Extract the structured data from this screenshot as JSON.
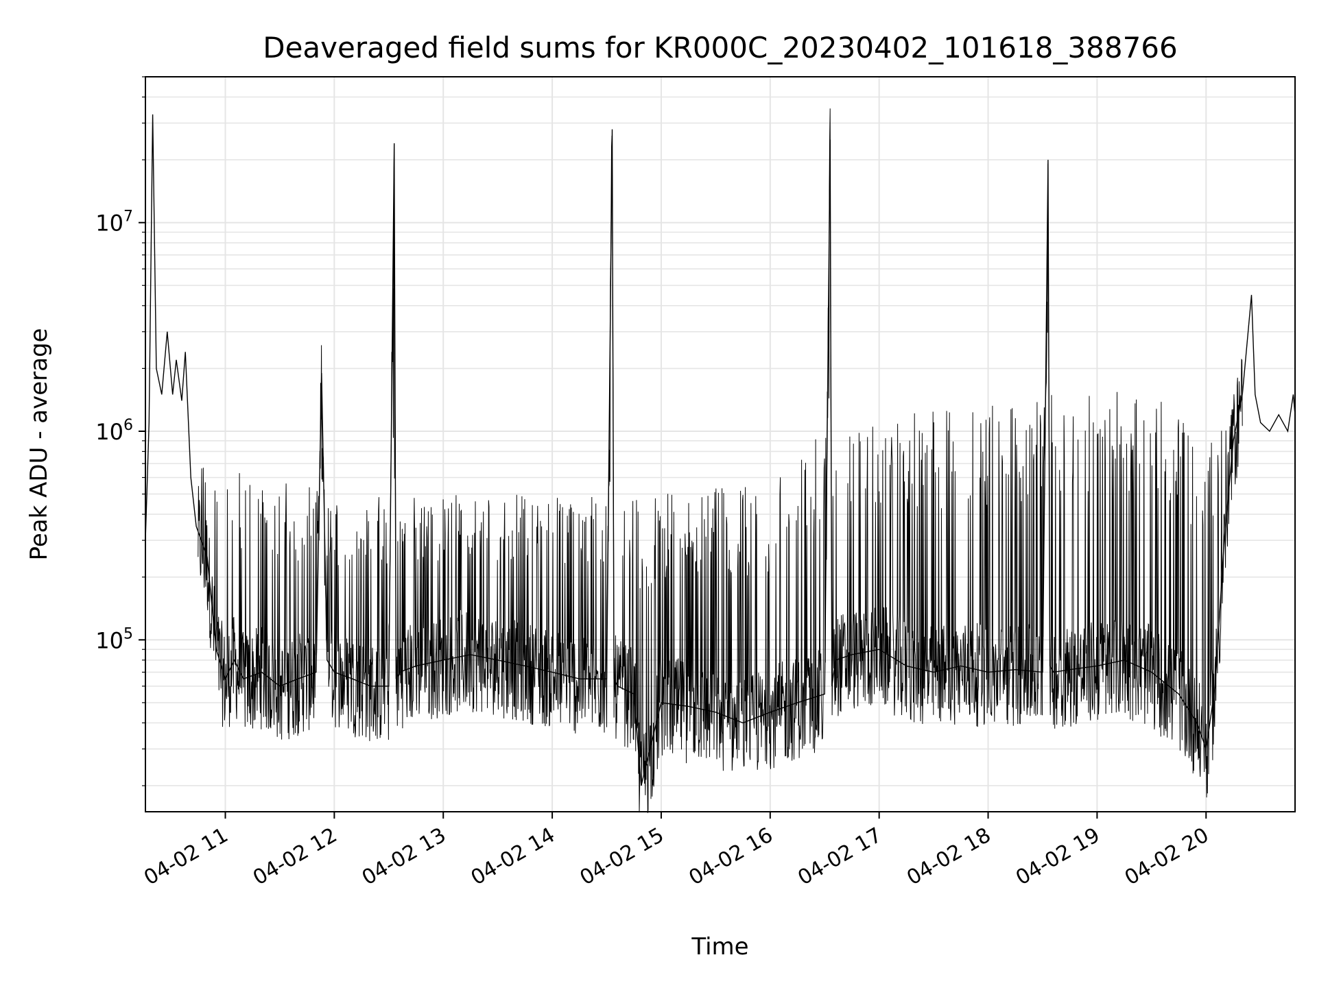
{
  "chart_data": {
    "type": "line",
    "title": "Deaveraged field sums for KR000C_20230402_101618_388766",
    "xlabel": "Time",
    "ylabel": "Peak ADU - average",
    "x_axis": {
      "kind": "datetime",
      "range": [
        "2023-04-02 10:16",
        "2023-04-02 20:49"
      ],
      "ticks": [
        {
          "value": "2023-04-02 11:00",
          "label": "04-02 11"
        },
        {
          "value": "2023-04-02 12:00",
          "label": "04-02 12"
        },
        {
          "value": "2023-04-02 13:00",
          "label": "04-02 13"
        },
        {
          "value": "2023-04-02 14:00",
          "label": "04-02 14"
        },
        {
          "value": "2023-04-02 15:00",
          "label": "04-02 15"
        },
        {
          "value": "2023-04-02 16:00",
          "label": "04-02 16"
        },
        {
          "value": "2023-04-02 17:00",
          "label": "04-02 17"
        },
        {
          "value": "2023-04-02 18:00",
          "label": "04-02 18"
        },
        {
          "value": "2023-04-02 19:00",
          "label": "04-02 19"
        },
        {
          "value": "2023-04-02 20:00",
          "label": "04-02 20"
        }
      ],
      "tick_label_rotation_deg": 30
    },
    "y_axis": {
      "scale": "log",
      "range": [
        15000,
        50000000
      ],
      "major_ticks": [
        {
          "value": 100000,
          "base": "10",
          "exp": "5"
        },
        {
          "value": 1000000,
          "base": "10",
          "exp": "6"
        },
        {
          "value": 10000000,
          "base": "10",
          "exp": "7"
        }
      ]
    },
    "grid": true,
    "grid_minor": true,
    "legend": "none",
    "series_color": "#000000",
    "grid_color": "#e5e5e5",
    "series": [
      {
        "x": [
          "2023-04-02 10:16",
          "2023-04-02 10:18",
          "2023-04-02 10:20",
          "2023-04-02 10:22",
          "2023-04-02 10:25",
          "2023-04-02 10:28",
          "2023-04-02 10:31",
          "2023-04-02 10:33",
          "2023-04-02 10:36",
          "2023-04-02 10:38",
          "2023-04-02 10:41",
          "2023-04-02 10:44",
          "2023-04-02 10:50",
          "2023-04-02 10:55",
          "2023-04-02 11:00",
          "2023-04-02 11:05",
          "2023-04-02 11:10",
          "2023-04-02 11:20",
          "2023-04-02 11:30",
          "2023-04-02 11:40",
          "2023-04-02 11:50",
          "2023-04-02 11:53",
          "2023-04-02 11:56",
          "2023-04-02 12:00",
          "2023-04-02 12:10",
          "2023-04-02 12:20",
          "2023-04-02 12:30",
          "2023-04-02 12:33",
          "2023-04-02 12:34",
          "2023-04-02 12:36",
          "2023-04-02 12:45",
          "2023-04-02 13:00",
          "2023-04-02 13:15",
          "2023-04-02 13:30",
          "2023-04-02 13:45",
          "2023-04-02 14:00",
          "2023-04-02 14:15",
          "2023-04-02 14:30",
          "2023-04-02 14:33",
          "2023-04-02 14:34",
          "2023-04-02 14:36",
          "2023-04-02 14:45",
          "2023-04-02 14:49",
          "2023-04-02 15:00",
          "2023-04-02 15:15",
          "2023-04-02 15:30",
          "2023-04-02 15:45",
          "2023-04-02 16:00",
          "2023-04-02 16:15",
          "2023-04-02 16:30",
          "2023-04-02 16:33",
          "2023-04-02 16:34",
          "2023-04-02 16:36",
          "2023-04-02 16:45",
          "2023-04-02 17:00",
          "2023-04-02 17:15",
          "2023-04-02 17:30",
          "2023-04-02 17:45",
          "2023-04-02 18:00",
          "2023-04-02 18:15",
          "2023-04-02 18:30",
          "2023-04-02 18:33",
          "2023-04-02 18:34",
          "2023-04-02 18:36",
          "2023-04-02 18:45",
          "2023-04-02 19:00",
          "2023-04-02 19:15",
          "2023-04-02 19:30",
          "2023-04-02 19:45",
          "2023-04-02 19:55",
          "2023-04-02 20:00",
          "2023-04-02 20:05",
          "2023-04-02 20:10",
          "2023-04-02 20:15",
          "2023-04-02 20:20",
          "2023-04-02 20:25",
          "2023-04-02 20:27",
          "2023-04-02 20:30",
          "2023-04-02 20:35",
          "2023-04-02 20:40",
          "2023-04-02 20:45",
          "2023-04-02 20:48",
          "2023-04-02 20:49"
        ],
        "y": [
          300000,
          1100000,
          33000000,
          2000000,
          1500000,
          3000000,
          1500000,
          2200000,
          1400000,
          2400000,
          600000,
          350000,
          250000,
          90000,
          65000,
          80000,
          65000,
          70000,
          60000,
          65000,
          70000,
          1900000,
          80000,
          70000,
          65000,
          60000,
          60000,
          24000000,
          65000,
          70000,
          75000,
          80000,
          85000,
          80000,
          75000,
          70000,
          65000,
          65000,
          28000000,
          65000,
          60000,
          55000,
          20000,
          50000,
          48000,
          45000,
          40000,
          45000,
          50000,
          55000,
          25000000,
          60000,
          80000,
          85000,
          90000,
          75000,
          70000,
          75000,
          70000,
          72000,
          70000,
          20000000,
          75000,
          70000,
          72000,
          75000,
          80000,
          70000,
          55000,
          40000,
          30000,
          60000,
          300000,
          900000,
          1500000,
          4500000,
          1500000,
          1100000,
          1000000,
          1200000,
          1000000,
          1500000,
          1200000
        ]
      }
    ],
    "upper_envelope": {
      "description_points": "spike tops",
      "x": [
        "2023-04-02 11:00",
        "2023-04-02 12:00",
        "2023-04-02 13:00",
        "2023-04-02 14:00",
        "2023-04-02 15:00",
        "2023-04-02 16:00",
        "2023-04-02 16:30",
        "2023-04-02 17:00",
        "2023-04-02 17:30",
        "2023-04-02 18:00",
        "2023-04-02 18:30",
        "2023-04-02 19:00",
        "2023-04-02 19:30",
        "2023-04-02 20:00"
      ],
      "y": [
        700000,
        500000,
        500000,
        500000,
        500000,
        600000,
        1000000,
        1100000,
        1300000,
        1400000,
        1500000,
        1600000,
        1500000,
        1300000
      ]
    }
  }
}
